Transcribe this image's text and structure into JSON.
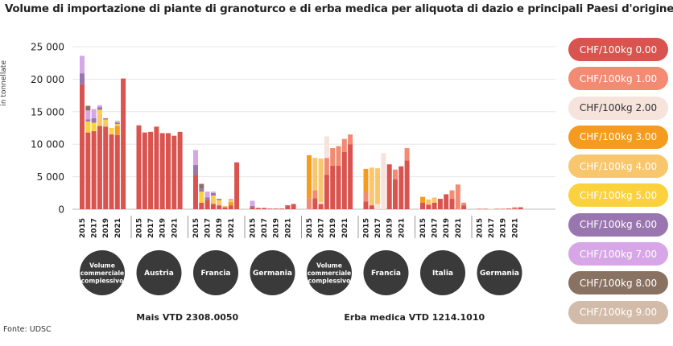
{
  "title": "Volume di importazione di piante di granoturco e di erba medica per aliquota di dazio e principali Paesi d'origine",
  "source": "Fonte: UDSC",
  "legend": [
    {
      "label": "CHF/100kg 0.00",
      "color": "#d9534f"
    },
    {
      "label": "CHF/100kg 1.00",
      "color": "#f28b72"
    },
    {
      "label": "CHF/100kg 2.00",
      "color": "#f5e3dc"
    },
    {
      "label": "CHF/100kg 3.00",
      "color": "#f59b1f"
    },
    {
      "label": "CHF/100kg 4.00",
      "color": "#f8c66c"
    },
    {
      "label": "CHF/100kg 5.00",
      "color": "#fbd23b"
    },
    {
      "label": "CHF/100kg 6.00",
      "color": "#9a76b0"
    },
    {
      "label": "CHF/100kg 7.00",
      "color": "#d6a6e6"
    },
    {
      "label": "CHF/100kg 8.00",
      "color": "#8a7263"
    },
    {
      "label": "CHF/100kg 9.00",
      "color": "#d2bba8"
    }
  ],
  "chart_data": {
    "type": "bar",
    "stacked": true,
    "ylabel": "in tonnellate",
    "ylim": [
      0,
      25000
    ],
    "yticks": [
      0,
      5000,
      10000,
      15000,
      20000,
      25000
    ],
    "ytick_labels": [
      "0",
      "5 000",
      "10 000",
      "15 000",
      "20 000",
      "25 000"
    ],
    "years": [
      2015,
      2016,
      2017,
      2018,
      2019,
      2020,
      2021,
      2022
    ],
    "year_labels": [
      "2015",
      "2017",
      "2019",
      "2021"
    ],
    "series_names": [
      "CHF/100kg 0.00",
      "CHF/100kg 1.00",
      "CHF/100kg 2.00",
      "CHF/100kg 3.00",
      "CHF/100kg 4.00",
      "CHF/100kg 5.00",
      "CHF/100kg 6.00",
      "CHF/100kg 7.00",
      "CHF/100kg 8.00",
      "CHF/100kg 9.00"
    ],
    "products": [
      {
        "name": "Mais VTD 2308.0050",
        "groups": [
          0,
          1,
          2,
          3
        ]
      },
      {
        "name": "Erba medica VTD 1214.1010",
        "groups": [
          4,
          5,
          6,
          7
        ]
      }
    ],
    "groups": [
      {
        "name": "Volume commerciale complessivo",
        "label_lines": [
          "Volume",
          "commerciale",
          "complessivo"
        ],
        "bars": [
          [
            19200,
            0,
            0,
            0,
            0,
            0,
            1700,
            2700,
            0,
            0
          ],
          [
            11800,
            0,
            0,
            0,
            0,
            1700,
            300,
            1400,
            700,
            0
          ],
          [
            12000,
            0,
            0,
            0,
            0,
            1300,
            700,
            1400,
            0,
            0
          ],
          [
            12800,
            0,
            0,
            0,
            1900,
            600,
            400,
            300,
            0,
            0
          ],
          [
            12700,
            0,
            0,
            0,
            700,
            400,
            200,
            0,
            0,
            0
          ],
          [
            11500,
            0,
            0,
            0,
            300,
            700,
            0,
            0,
            0,
            0
          ],
          [
            11400,
            0,
            0,
            1400,
            0,
            300,
            200,
            0,
            0,
            300
          ],
          [
            20100,
            0,
            0,
            0,
            0,
            0,
            0,
            0,
            0,
            0
          ]
        ]
      },
      {
        "name": "Austria",
        "label_lines": [
          "Austria"
        ],
        "bars": [
          [
            12900,
            0,
            0,
            0,
            0,
            0,
            0,
            0,
            0,
            0
          ],
          [
            11800,
            0,
            0,
            0,
            0,
            0,
            0,
            0,
            0,
            0
          ],
          [
            11900,
            0,
            0,
            0,
            0,
            0,
            0,
            0,
            0,
            0
          ],
          [
            12700,
            0,
            0,
            0,
            0,
            0,
            0,
            0,
            0,
            0
          ],
          [
            11700,
            0,
            0,
            0,
            0,
            0,
            0,
            0,
            0,
            0
          ],
          [
            11700,
            0,
            0,
            0,
            0,
            0,
            0,
            0,
            0,
            0
          ],
          [
            11300,
            0,
            0,
            0,
            0,
            0,
            0,
            0,
            0,
            0
          ],
          [
            11900,
            0,
            0,
            0,
            0,
            0,
            0,
            0,
            0,
            0
          ]
        ]
      },
      {
        "name": "Francia",
        "label_lines": [
          "Francia"
        ],
        "bars": [
          [
            5300,
            0,
            0,
            0,
            0,
            0,
            1500,
            2300,
            0,
            0
          ],
          [
            1000,
            0,
            0,
            0,
            0,
            1700,
            500,
            0,
            700,
            0
          ],
          [
            1400,
            0,
            0,
            0,
            0,
            0,
            400,
            900,
            0,
            0
          ],
          [
            800,
            0,
            0,
            0,
            900,
            400,
            400,
            200,
            0,
            0
          ],
          [
            600,
            0,
            0,
            0,
            500,
            300,
            200,
            0,
            0,
            0
          ],
          [
            300,
            0,
            0,
            0,
            200,
            0,
            0,
            0,
            0,
            0
          ],
          [
            600,
            0,
            0,
            500,
            0,
            300,
            0,
            200,
            0,
            0
          ],
          [
            7200,
            0,
            0,
            0,
            0,
            0,
            0,
            0,
            0,
            0
          ]
        ]
      },
      {
        "name": "Germania",
        "label_lines": [
          "Germania"
        ],
        "bars": [
          [
            300,
            0,
            0,
            0,
            0,
            0,
            200,
            800,
            0,
            0
          ],
          [
            200,
            0,
            0,
            0,
            0,
            0,
            0,
            0,
            0,
            0
          ],
          [
            200,
            0,
            0,
            0,
            0,
            0,
            0,
            0,
            0,
            0
          ],
          [
            100,
            0,
            0,
            0,
            0,
            0,
            0,
            0,
            0,
            0
          ],
          [
            100,
            0,
            0,
            0,
            0,
            0,
            0,
            0,
            0,
            0
          ],
          [
            100,
            0,
            0,
            0,
            0,
            0,
            0,
            0,
            0,
            0
          ],
          [
            600,
            0,
            0,
            0,
            0,
            0,
            0,
            0,
            0,
            0
          ],
          [
            800,
            0,
            0,
            0,
            0,
            0,
            0,
            0,
            0,
            0
          ]
        ]
      },
      {
        "name": "Volume commerciale complessivo",
        "label_lines": [
          "Volume",
          "commerciale",
          "complessivo"
        ],
        "bars": [
          [
            0,
            1700,
            0,
            6600,
            0,
            0,
            0,
            0,
            0,
            0
          ],
          [
            1700,
            1200,
            0,
            0,
            5000,
            0,
            0,
            0,
            0,
            0
          ],
          [
            800,
            0,
            300,
            0,
            6700,
            0,
            0,
            0,
            0,
            0
          ],
          [
            5300,
            2600,
            3300,
            0,
            0,
            0,
            0,
            0,
            0,
            0
          ],
          [
            6700,
            2700,
            0,
            0,
            0,
            0,
            0,
            0,
            0,
            0
          ],
          [
            6700,
            3000,
            0,
            0,
            0,
            0,
            0,
            0,
            0,
            0
          ],
          [
            8800,
            2000,
            0,
            0,
            0,
            0,
            0,
            0,
            0,
            0
          ],
          [
            10000,
            1500,
            0,
            0,
            0,
            0,
            0,
            0,
            0,
            0
          ]
        ]
      },
      {
        "name": "Francia",
        "label_lines": [
          "Francia"
        ],
        "bars": [
          [
            1200,
            1400,
            0,
            3600,
            0,
            0,
            0,
            0,
            0,
            0
          ],
          [
            600,
            0,
            0,
            0,
            5800,
            0,
            0,
            0,
            0,
            0
          ],
          [
            0,
            0,
            800,
            0,
            5500,
            0,
            0,
            0,
            0,
            0
          ],
          [
            0,
            0,
            8600,
            0,
            0,
            0,
            0,
            0,
            0,
            0
          ],
          [
            6900,
            0,
            0,
            0,
            0,
            0,
            0,
            0,
            0,
            0
          ],
          [
            4600,
            1500,
            0,
            0,
            0,
            0,
            0,
            0,
            0,
            0
          ],
          [
            6600,
            0,
            0,
            0,
            0,
            0,
            0,
            0,
            0,
            0
          ],
          [
            7500,
            1900,
            0,
            0,
            0,
            0,
            0,
            0,
            0,
            0
          ]
        ]
      },
      {
        "name": "Italia",
        "label_lines": [
          "Italia"
        ],
        "bars": [
          [
            1000,
            0,
            0,
            900,
            0,
            0,
            0,
            0,
            0,
            0
          ],
          [
            700,
            0,
            0,
            0,
            800,
            0,
            0,
            0,
            0,
            0
          ],
          [
            1000,
            0,
            0,
            0,
            800,
            0,
            0,
            0,
            0,
            0
          ],
          [
            1600,
            0,
            0,
            0,
            0,
            0,
            0,
            0,
            0,
            0
          ],
          [
            2300,
            0,
            0,
            0,
            0,
            0,
            0,
            0,
            0,
            0
          ],
          [
            1600,
            1300,
            0,
            0,
            0,
            0,
            0,
            0,
            0,
            0
          ],
          [
            0,
            3800,
            0,
            0,
            0,
            0,
            0,
            0,
            0,
            0
          ],
          [
            600,
            400,
            0,
            0,
            0,
            0,
            0,
            0,
            0,
            0
          ]
        ]
      },
      {
        "name": "Germania",
        "label_lines": [
          "Germania"
        ],
        "bars": [
          [
            0,
            100,
            0,
            0,
            0,
            0,
            0,
            0,
            0,
            0
          ],
          [
            0,
            100,
            0,
            0,
            0,
            0,
            0,
            0,
            0,
            0
          ],
          [
            0,
            0,
            100,
            0,
            0,
            0,
            0,
            0,
            0,
            0
          ],
          [
            0,
            100,
            0,
            0,
            0,
            0,
            0,
            0,
            0,
            0
          ],
          [
            0,
            100,
            0,
            0,
            0,
            0,
            0,
            0,
            0,
            0
          ],
          [
            100,
            0,
            0,
            0,
            0,
            0,
            0,
            0,
            0,
            0
          ],
          [
            100,
            200,
            0,
            0,
            0,
            0,
            0,
            0,
            0,
            0
          ],
          [
            300,
            0,
            0,
            0,
            0,
            0,
            0,
            0,
            0,
            0
          ]
        ]
      }
    ]
  }
}
